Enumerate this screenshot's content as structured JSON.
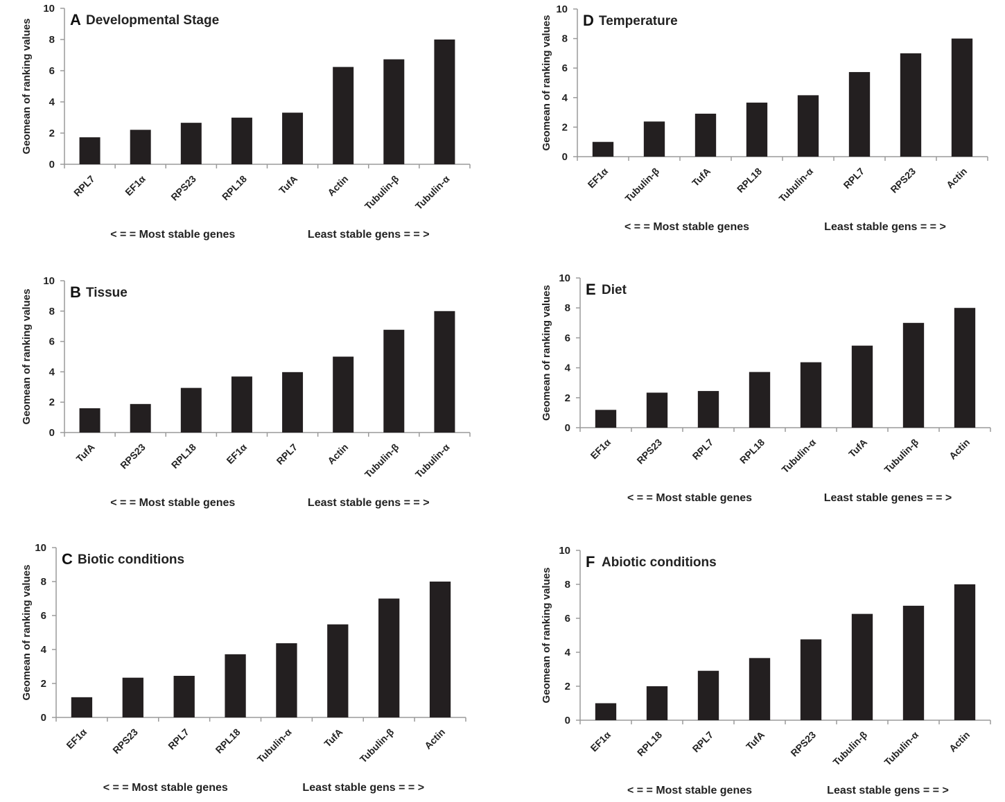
{
  "chart_data": [
    {
      "id": "A",
      "type": "bar",
      "letter": "A",
      "title": "Developmental Stage",
      "ylabel": "Geomean of ranking values",
      "ylim": [
        0,
        10
      ],
      "yticks": [
        "0",
        "2",
        "4",
        "6",
        "8",
        "10"
      ],
      "categories": [
        "RPL7",
        "EF1α",
        "RPS23",
        "RPL18",
        "TufA",
        "Actin",
        "Tubulin-β",
        "Tubulin-α"
      ],
      "values": [
        1.73,
        2.21,
        2.66,
        2.99,
        3.31,
        6.24,
        6.73,
        8.0
      ],
      "note_left": "< = = Most stable genes",
      "note_right": "Least stable gens = = >"
    },
    {
      "id": "B",
      "type": "bar",
      "letter": "B",
      "title": "Tissue",
      "ylabel": "Geomean of ranking values",
      "ylim": [
        0,
        10
      ],
      "yticks": [
        "0",
        "2",
        "4",
        "6",
        "8",
        "10"
      ],
      "categories": [
        "TufA",
        "RPS23",
        "RPL18",
        "EF1α",
        "RPL7",
        "Actin",
        "Tubulin-β",
        "Tubulin-α"
      ],
      "values": [
        1.6,
        1.88,
        2.94,
        3.69,
        3.98,
        5.0,
        6.77,
        8.0
      ],
      "note_left": "< = = Most stable genes",
      "note_right": "Least stable gens = = >"
    },
    {
      "id": "C",
      "type": "bar",
      "letter": "C",
      "title": "Biotic conditions",
      "ylabel": "Geomean of ranking values",
      "ylim": [
        0,
        10
      ],
      "yticks": [
        "0",
        "2",
        "4",
        "6",
        "8",
        "10"
      ],
      "categories": [
        "EF1α",
        "RPS23",
        "RPL7",
        "RPL18",
        "Tubulin-α",
        "TufA",
        "Tubulin-β",
        "Actin"
      ],
      "values": [
        1.19,
        2.34,
        2.45,
        3.72,
        4.37,
        5.48,
        7.0,
        8.0
      ],
      "note_left": "< = = Most stable genes",
      "note_right": "Least stable gens = = >"
    },
    {
      "id": "D",
      "type": "bar",
      "letter": "D",
      "title": "Temperature",
      "ylabel": "Geomean of ranking values",
      "ylim": [
        0,
        10
      ],
      "yticks": [
        "0",
        "2",
        "4",
        "6",
        "8",
        "10"
      ],
      "categories": [
        "EF1α",
        "Tubulin-β",
        "TufA",
        "RPL18",
        "Tubulin-α",
        "RPL7",
        "RPS23",
        "Actin"
      ],
      "values": [
        1.0,
        2.38,
        2.91,
        3.66,
        4.16,
        5.73,
        7.0,
        8.0
      ],
      "note_left": "< = = Most stable genes",
      "note_right": "Least stable gens = = >"
    },
    {
      "id": "E",
      "type": "bar",
      "letter": "E",
      "title": "Diet",
      "ylabel": "Geomean of ranking values",
      "ylim": [
        0,
        10
      ],
      "yticks": [
        "0",
        "2",
        "4",
        "6",
        "8",
        "10"
      ],
      "categories": [
        "EF1α",
        "RPS23",
        "RPL7",
        "RPL18",
        "Tubulin-α",
        "TufA",
        "Tubulin-β",
        "Actin"
      ],
      "values": [
        1.19,
        2.34,
        2.45,
        3.72,
        4.37,
        5.48,
        7.0,
        8.0
      ],
      "note_left": "< = = Most stable genes",
      "note_right": "Least stable genes = = >"
    },
    {
      "id": "F",
      "type": "bar",
      "letter": "F",
      "title": "Abiotic conditions",
      "ylabel": "Geomean of ranking values",
      "ylim": [
        0,
        10
      ],
      "yticks": [
        "0",
        "2",
        "4",
        "6",
        "8",
        "10"
      ],
      "categories": [
        "EF1α",
        "RPL18",
        "RPL7",
        "TufA",
        "RPS23",
        "Tubulin-β",
        "Tubulin-α",
        "Actin"
      ],
      "values": [
        1.0,
        2.0,
        2.91,
        3.66,
        4.76,
        6.26,
        6.74,
        8.0
      ],
      "note_left": "< = = Most stable genes",
      "note_right": "Least stable gens = = >"
    }
  ]
}
